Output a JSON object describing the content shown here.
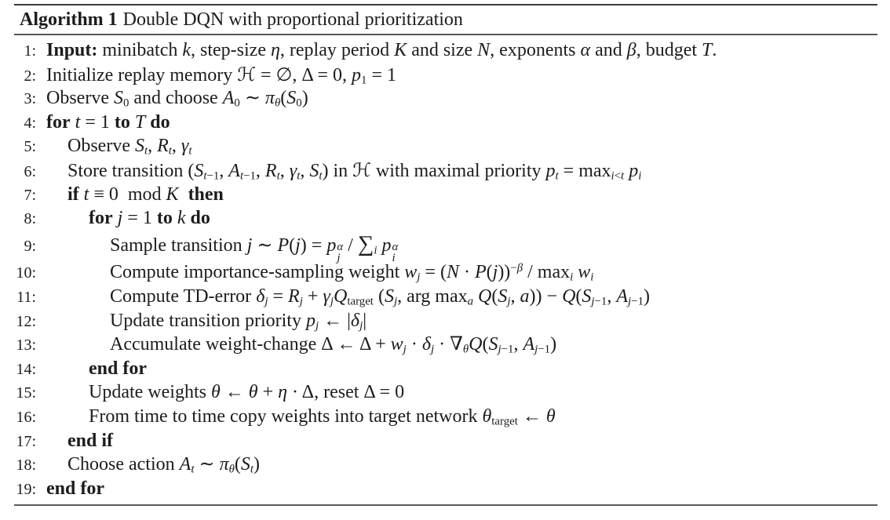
{
  "colors": {
    "background": "#ffffff",
    "text": "#1c1c1c",
    "rule": "#4a4a4a"
  },
  "title": {
    "label": "Algorithm 1",
    "caption": "Double DQN with proportional prioritization"
  },
  "algorithm": {
    "lines": [
      {
        "num": "1:",
        "indent": 0,
        "html": "<b>Input:</b> minibatch <i>k</i>, step-size <i>η</i>, replay period <i>K</i> and size <i>N</i>, exponents <i>α</i> and <i>β</i>, budget <i>T</i>."
      },
      {
        "num": "2:",
        "indent": 0,
        "html": "Initialize replay memory <span class=\"cal\">ℋ</span> = ∅, Δ = 0, <i>p</i><sub>1</sub> = 1"
      },
      {
        "num": "3:",
        "indent": 0,
        "html": "Observe <i>S</i><sub>0</sub> and choose <i>A</i><sub>0</sub> ∼ <i>π</i><sub><i>θ</i></sub>(<i>S</i><sub>0</sub>)"
      },
      {
        "num": "4:",
        "indent": 0,
        "html": "<b>for</b> <i>t</i> = 1 <b>to</b> <i>T</i> <b>do</b>"
      },
      {
        "num": "5:",
        "indent": 1,
        "html": "Observe <i>S</i><sub><i>t</i></sub>, <i>R</i><sub><i>t</i></sub>, <i>γ</i><sub><i>t</i></sub>"
      },
      {
        "num": "6:",
        "indent": 1,
        "html": "Store transition (<i>S</i><sub><i>t</i>−1</sub>, <i>A</i><sub><i>t</i>−1</sub>, <i>R</i><sub><i>t</i></sub>, <i>γ</i><sub><i>t</i></sub>, <i>S</i><sub><i>t</i></sub>) in <span class=\"cal\">ℋ</span> with maximal priority <i>p</i><sub><i>t</i></sub> = max<sub><i>i</i>&lt;<i>t</i></sub> <i>p</i><sub><i>i</i></sub>"
      },
      {
        "num": "7:",
        "indent": 1,
        "html": "<b>if</b> <i>t</i> ≡ 0&nbsp; mod <i>K</i>&nbsp; <b>then</b>"
      },
      {
        "num": "8:",
        "indent": 2,
        "html": "<b>for</b> <i>j</i> = 1 <b>to</b> <i>k</i> <b>do</b>"
      },
      {
        "num": "9:",
        "indent": 3,
        "html": "Sample transition <i>j</i> ∼ <i>P</i>(<i>j</i>) = <i>p</i><span class=\"ss\"><span><i>α</i></span><span><i>j</i></span></span> / <span class=\"sum\">∑</span><sub><i>i</i></sub> <i>p</i><span class=\"ss\"><span><i>α</i></span><span><i>i</i></span></span>"
      },
      {
        "num": "10:",
        "indent": 3,
        "html": "Compute importance-sampling weight <i>w</i><sub><i>j</i></sub> = (<i>N</i> · <i>P</i>(<i>j</i>))<sup>−<i>β</i></sup> / max<sub><i>i</i></sub> <i>w</i><sub><i>i</i></sub>"
      },
      {
        "num": "11:",
        "indent": 3,
        "html": "Compute TD-error <i>δ</i><sub><i>j</i></sub> = <i>R</i><sub><i>j</i></sub> + <i>γ</i><sub><i>j</i></sub><i>Q</i><sub>target</sub> (<i>S</i><sub><i>j</i></sub>, arg max<sub><i>a</i></sub> <i>Q</i>(<i>S</i><sub><i>j</i></sub>, <i>a</i>)) − <i>Q</i>(<i>S</i><sub><i>j</i>−1</sub>, <i>A</i><sub><i>j</i>−1</sub>)"
      },
      {
        "num": "12:",
        "indent": 3,
        "html": "Update transition priority <i>p</i><sub><i>j</i></sub> ← |<i>δ</i><sub><i>j</i></sub>|"
      },
      {
        "num": "13:",
        "indent": 3,
        "html": "Accumulate weight-change Δ ← Δ + <i>w</i><sub><i>j</i></sub> · <i>δ</i><sub><i>j</i></sub> · ∇<sub><i>θ</i></sub><i>Q</i>(<i>S</i><sub><i>j</i>−1</sub>, <i>A</i><sub><i>j</i>−1</sub>)"
      },
      {
        "num": "14:",
        "indent": 2,
        "html": "<b>end for</b>"
      },
      {
        "num": "15:",
        "indent": 2,
        "html": "Update weights <i>θ</i> ← <i>θ</i> + <i>η</i> · Δ, reset Δ = 0"
      },
      {
        "num": "16:",
        "indent": 2,
        "html": "From time to time copy weights into target network <i>θ</i><sub>target</sub> ← <i>θ</i>"
      },
      {
        "num": "17:",
        "indent": 1,
        "html": "<b>end if</b>"
      },
      {
        "num": "18:",
        "indent": 1,
        "html": "Choose action <i>A</i><sub><i>t</i></sub> ∼ <i>π</i><sub><i>θ</i></sub>(<i>S</i><sub><i>t</i></sub>)"
      },
      {
        "num": "19:",
        "indent": 0,
        "html": "<b>end for</b>"
      }
    ]
  }
}
